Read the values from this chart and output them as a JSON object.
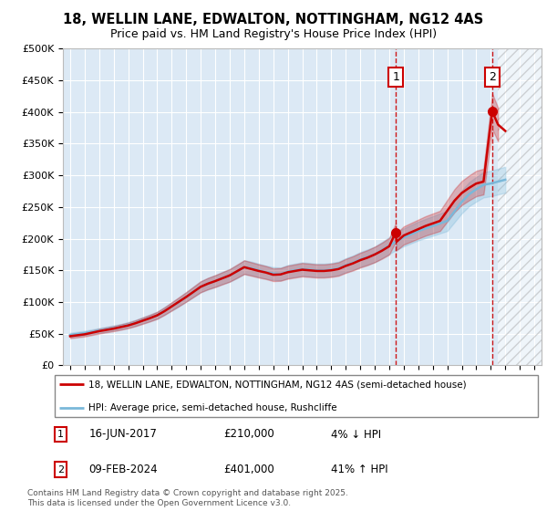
{
  "title": "18, WELLIN LANE, EDWALTON, NOTTINGHAM, NG12 4AS",
  "subtitle": "Price paid vs. HM Land Registry's House Price Index (HPI)",
  "ylabel_ticks": [
    "£0",
    "£50K",
    "£100K",
    "£150K",
    "£200K",
    "£250K",
    "£300K",
    "£350K",
    "£400K",
    "£450K",
    "£500K"
  ],
  "ytick_values": [
    0,
    50000,
    100000,
    150000,
    200000,
    250000,
    300000,
    350000,
    400000,
    450000,
    500000
  ],
  "ylim": [
    0,
    500000
  ],
  "xlim_start": 1994.5,
  "xlim_end": 2027.5,
  "background_color": "#ffffff",
  "plot_bg_color": "#dce9f5",
  "hpi_line_color": "#7ab8d9",
  "price_line_color": "#cc0000",
  "sale1_year": 2017.45,
  "sale1_price": 210000,
  "sale2_year": 2024.1,
  "sale2_price": 401000,
  "legend_line1": "18, WELLIN LANE, EDWALTON, NOTTINGHAM, NG12 4AS (semi-detached house)",
  "legend_line2": "HPI: Average price, semi-detached house, Rushcliffe",
  "footer": "Contains HM Land Registry data © Crown copyright and database right 2025.\nThis data is licensed under the Open Government Licence v3.0.",
  "hpi_years": [
    1995.0,
    1995.5,
    1996.0,
    1996.5,
    1997.0,
    1997.5,
    1998.0,
    1998.5,
    1999.0,
    1999.5,
    2000.0,
    2000.5,
    2001.0,
    2001.5,
    2002.0,
    2002.5,
    2003.0,
    2003.5,
    2004.0,
    2004.5,
    2005.0,
    2005.5,
    2006.0,
    2006.5,
    2007.0,
    2007.5,
    2008.0,
    2008.5,
    2009.0,
    2009.5,
    2010.0,
    2010.5,
    2011.0,
    2011.5,
    2012.0,
    2012.5,
    2013.0,
    2013.5,
    2014.0,
    2014.5,
    2015.0,
    2015.5,
    2016.0,
    2016.5,
    2017.0,
    2017.5,
    2018.0,
    2018.5,
    2019.0,
    2019.5,
    2020.0,
    2020.5,
    2021.0,
    2021.5,
    2022.0,
    2022.5,
    2023.0,
    2023.5,
    2024.0,
    2024.5,
    2025.0
  ],
  "hpi_values": [
    48000,
    49500,
    51000,
    53000,
    55000,
    57000,
    59000,
    61000,
    64000,
    67000,
    71000,
    75000,
    79000,
    86000,
    93000,
    100000,
    108000,
    116000,
    124000,
    129000,
    133000,
    138000,
    142000,
    148000,
    155000,
    153000,
    150000,
    147000,
    145000,
    144000,
    148000,
    150000,
    152000,
    151000,
    150000,
    150000,
    151000,
    153000,
    158000,
    162000,
    167000,
    171000,
    175000,
    182000,
    189000,
    196000,
    202000,
    207000,
    212000,
    216000,
    220000,
    224000,
    228000,
    243000,
    258000,
    270000,
    278000,
    285000,
    287000,
    290000,
    293000
  ],
  "price_years": [
    1995.0,
    1995.5,
    1996.0,
    1996.5,
    1997.0,
    1997.5,
    1998.0,
    1998.5,
    1999.0,
    1999.5,
    2000.0,
    2000.5,
    2001.0,
    2001.5,
    2002.0,
    2002.5,
    2003.0,
    2003.5,
    2004.0,
    2004.5,
    2005.0,
    2005.5,
    2006.0,
    2006.5,
    2007.0,
    2007.5,
    2008.0,
    2008.5,
    2009.0,
    2009.5,
    2010.0,
    2010.5,
    2011.0,
    2011.5,
    2012.0,
    2012.5,
    2013.0,
    2013.5,
    2014.0,
    2014.5,
    2015.0,
    2015.5,
    2016.0,
    2016.5,
    2017.0,
    2017.45,
    2017.5,
    2018.0,
    2018.5,
    2019.0,
    2019.5,
    2020.0,
    2020.5,
    2021.0,
    2021.5,
    2022.0,
    2022.5,
    2023.0,
    2023.5,
    2024.1,
    2024.5,
    2025.0
  ],
  "price_values": [
    46000,
    47500,
    49000,
    51500,
    54000,
    56000,
    58000,
    60500,
    63000,
    66500,
    70500,
    74500,
    79000,
    85500,
    93000,
    100500,
    108000,
    116000,
    124000,
    129000,
    133000,
    137500,
    142000,
    148500,
    155000,
    152000,
    149000,
    146500,
    143000,
    143500,
    147000,
    149000,
    151000,
    150000,
    149000,
    149000,
    150000,
    152000,
    157000,
    161000,
    166000,
    170000,
    175000,
    181000,
    188000,
    210000,
    195000,
    205000,
    210000,
    215000,
    220000,
    224000,
    228000,
    244000,
    260000,
    272000,
    280000,
    287000,
    290000,
    401000,
    380000,
    370000
  ]
}
